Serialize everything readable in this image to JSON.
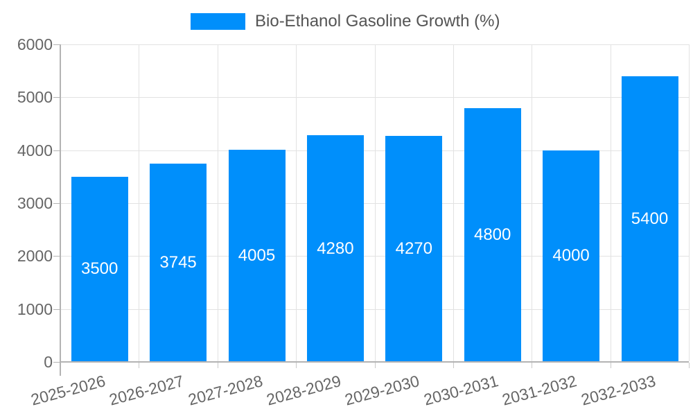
{
  "chart_data": {
    "type": "bar",
    "title": "",
    "legend": {
      "label": "Bio-Ethanol Gasoline Growth (%)",
      "position": "top"
    },
    "categories": [
      "2025-2026",
      "2026-2027",
      "2027-2028",
      "2028-2029",
      "2029-2030",
      "2030-2031",
      "2031-2032",
      "2032-2033"
    ],
    "values": [
      3500,
      3745,
      4005,
      4280,
      4270,
      4800,
      4000,
      5400
    ],
    "value_labels_shown": true,
    "xlabel": "",
    "ylabel": "",
    "ylim": [
      0,
      6000
    ],
    "yticks": [
      0,
      1000,
      2000,
      3000,
      4000,
      5000,
      6000
    ],
    "grid": true,
    "colors": {
      "bar": "#008FFB",
      "value_label": "#ffffff",
      "axis_text": "#666666",
      "legend_text": "#545454",
      "gridline": "#e2e2e2",
      "axis_line": "#b3b3b3"
    }
  }
}
